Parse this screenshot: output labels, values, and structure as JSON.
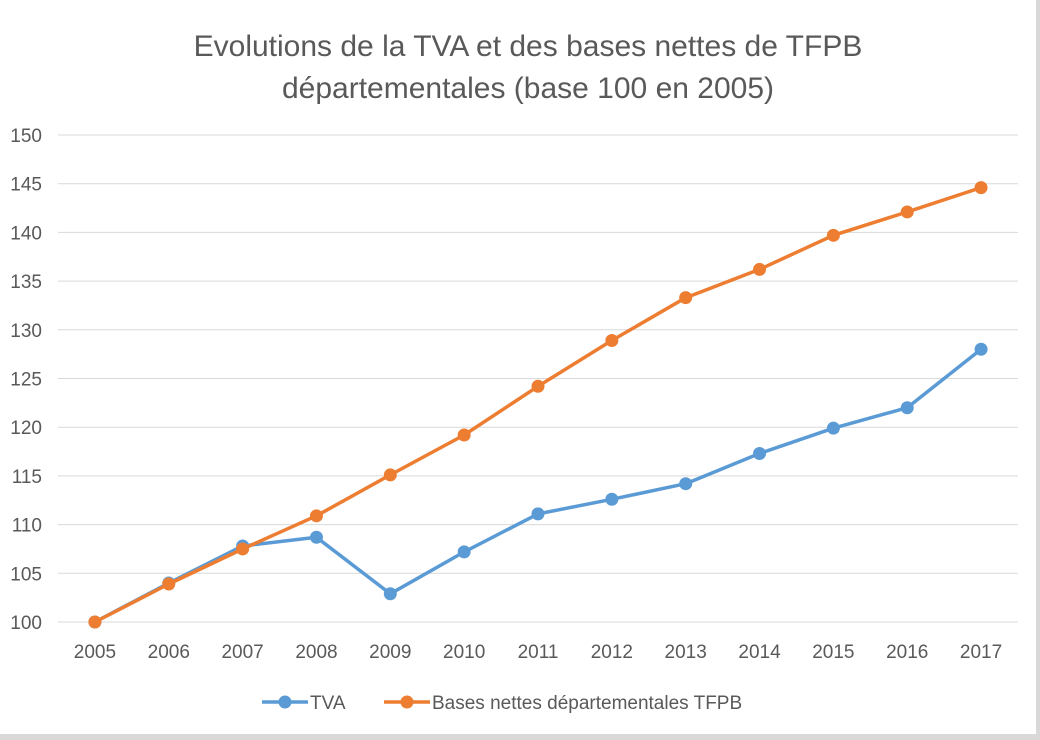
{
  "chart_data": {
    "type": "line",
    "title": "Evolutions de la TVA et des bases nettes de TFPB départementales (base 100 en 2005)",
    "title_lines": [
      "Evolutions de la TVA et des bases nettes de TFPB",
      "départementales (base 100 en 2005)"
    ],
    "categories": [
      "2005",
      "2006",
      "2007",
      "2008",
      "2009",
      "2010",
      "2011",
      "2012",
      "2013",
      "2014",
      "2015",
      "2016",
      "2017"
    ],
    "series": [
      {
        "name": "TVA",
        "color": "#5b9bd5",
        "values": [
          100,
          104.0,
          107.8,
          108.7,
          102.9,
          107.2,
          111.1,
          112.6,
          114.2,
          117.3,
          119.9,
          122.0,
          128.0
        ]
      },
      {
        "name": "Bases nettes départementales TFPB",
        "color": "#ed7d31",
        "values": [
          100,
          103.9,
          107.5,
          110.9,
          115.1,
          119.2,
          124.2,
          128.9,
          133.3,
          136.2,
          139.7,
          142.1,
          144.6
        ]
      }
    ],
    "ylim": [
      100,
      150
    ],
    "yticks": [
      100,
      105,
      110,
      115,
      120,
      125,
      130,
      135,
      140,
      145,
      150
    ],
    "grid": true,
    "legend_position": "bottom"
  }
}
